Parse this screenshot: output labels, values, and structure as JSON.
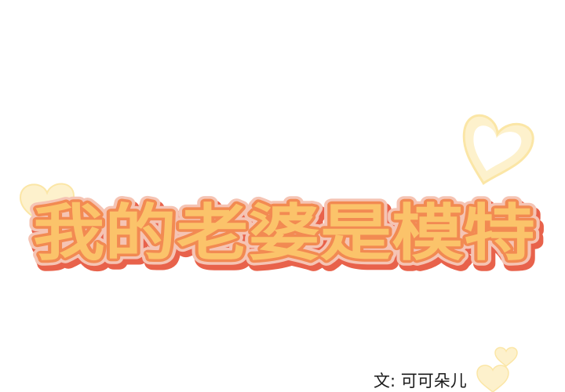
{
  "comic": {
    "title": "我的老婆是模特",
    "credit": "文: 可可朵儿"
  },
  "colors": {
    "title_fill": "#fbc36a",
    "title_outline_inner": "#f28a52",
    "title_outline_outer": "#f5c4b4",
    "title_shadow": "#e8624b",
    "heart_fill": "#fdf1cc",
    "heart_stroke": "#fbe6a6",
    "background": "#ffffff"
  },
  "decorations": {
    "icons": [
      "heart-icon",
      "heart-icon",
      "heart-icon",
      "heart-icon"
    ]
  }
}
